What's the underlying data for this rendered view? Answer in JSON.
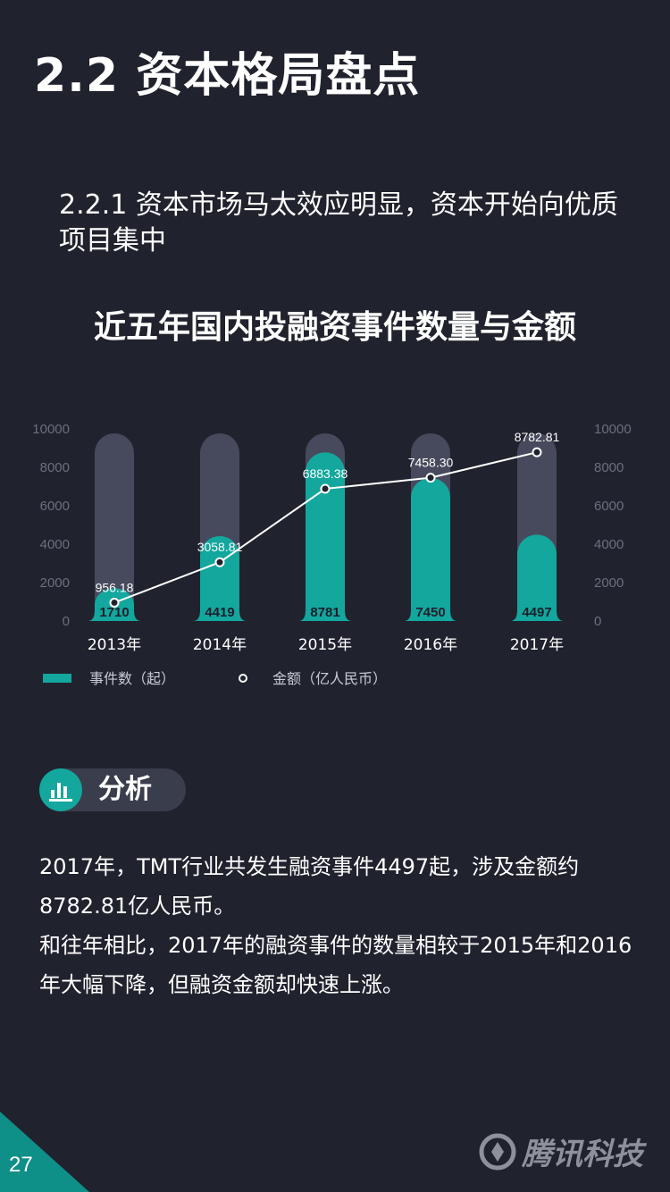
{
  "title": "2.2 资本格局盘点",
  "subtitle": "2.2.1 资本市场马太效应明显，资本开始向优质项目集中",
  "chart_title": "近五年国内投融资事件数量与金额",
  "chart_data": {
    "type": "bar",
    "categories": [
      "2013年",
      "2014年",
      "2015年",
      "2016年",
      "2017年"
    ],
    "series": [
      {
        "name": "事件数（起）",
        "type": "bar",
        "values": [
          1710,
          4419,
          8781,
          7450,
          4497
        ],
        "color": "#13a79e"
      },
      {
        "name": "金额（亿人民币）",
        "type": "line",
        "values": [
          956.18,
          3058.81,
          6883.38,
          7458.3,
          8782.81
        ],
        "value_labels": [
          "956.18",
          "3058.81",
          "6883.38",
          "7458.30",
          "8782.81"
        ],
        "color": "#ffffff"
      }
    ],
    "y_left": {
      "ticks": [
        "0",
        "2000",
        "4000",
        "6000",
        "8000",
        "10000"
      ],
      "ylim": [
        0,
        10000
      ]
    },
    "y_right": {
      "ticks": [
        "0",
        "2000",
        "4000",
        "6000",
        "8000",
        "10000"
      ],
      "ylim": [
        0,
        10000
      ]
    },
    "background_bar_color": "#474a5c",
    "legend_placement": "bottom-left"
  },
  "analysis": {
    "heading": "分析",
    "paragraphs": [
      "2017年，TMT行业共发生融资事件4497起，涉及金额约8782.81亿人民币。",
      "和往年相比，2017年的融资事件的数量相较于2015年和2016年大幅下降，但融资金额却快速上涨。"
    ]
  },
  "page_number": "27",
  "brand": "腾讯科技"
}
